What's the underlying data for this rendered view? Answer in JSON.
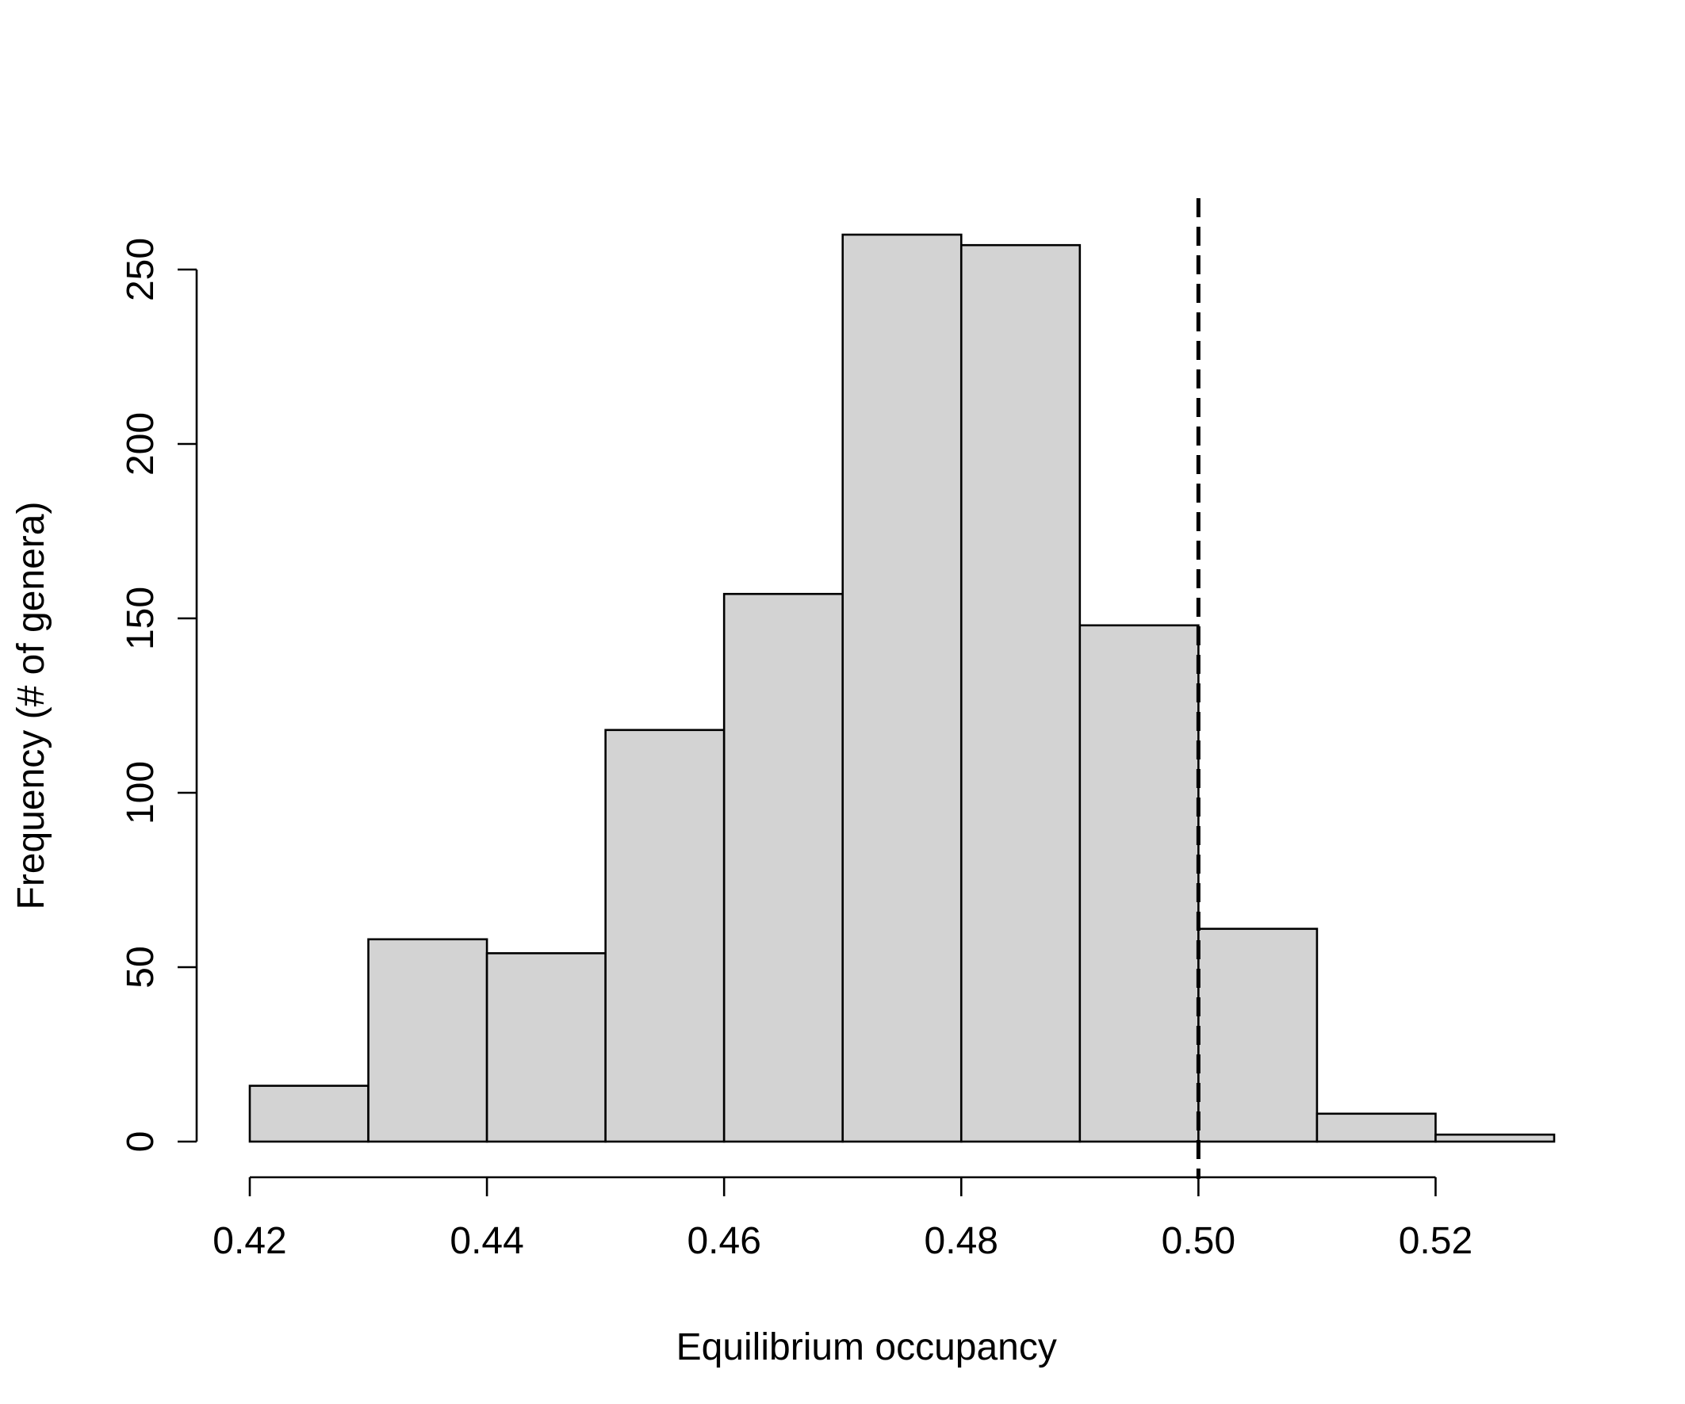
{
  "chart_data": {
    "type": "bar",
    "subtype": "histogram",
    "title": "",
    "xlabel": "Equilibrium occupancy",
    "ylabel": "Frequency (# of genera)",
    "bin_edges": [
      0.42,
      0.43,
      0.44,
      0.45,
      0.46,
      0.47,
      0.48,
      0.49,
      0.5,
      0.51,
      0.52,
      0.53
    ],
    "values": [
      16,
      58,
      54,
      118,
      157,
      260,
      257,
      148,
      61,
      8,
      2
    ],
    "xlim": [
      0.42,
      0.53
    ],
    "ylim": [
      0,
      260
    ],
    "x_ticks": [
      "0.42",
      "0.44",
      "0.46",
      "0.48",
      "0.50",
      "0.52"
    ],
    "x_tick_values": [
      0.42,
      0.44,
      0.46,
      0.48,
      0.5,
      0.52
    ],
    "y_ticks": [
      "0",
      "50",
      "100",
      "150",
      "200",
      "250"
    ],
    "y_tick_values": [
      0,
      50,
      100,
      150,
      200,
      250
    ],
    "reference_line": {
      "x": 0.5,
      "style": "dashed"
    },
    "bar_fill": "#d3d3d3",
    "bar_stroke": "#000000",
    "grid": false,
    "legend": "none"
  }
}
